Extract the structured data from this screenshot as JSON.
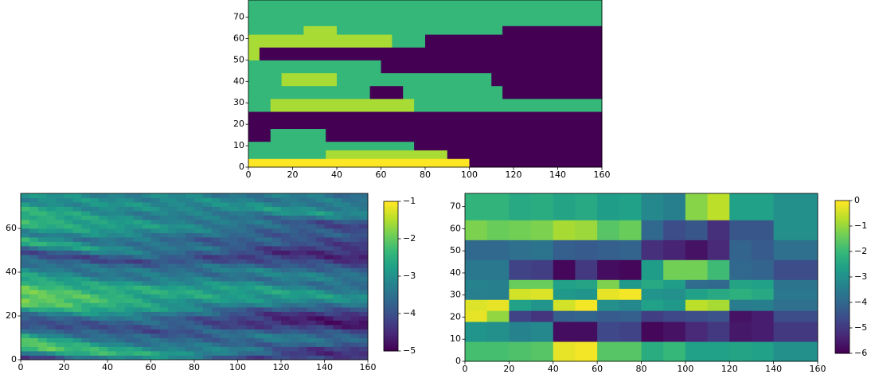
{
  "colors": {
    "viridis": [
      "#440154",
      "#482878",
      "#3e4a89",
      "#31688e",
      "#26828e",
      "#1f9e89",
      "#35b779",
      "#6ece58",
      "#b5de2b",
      "#fde725"
    ]
  },
  "chart_data": [
    {
      "id": "top",
      "type": "heatmap",
      "title": "",
      "xlabel": "",
      "ylabel": "",
      "xlim": [
        0,
        160
      ],
      "ylim": [
        0,
        78
      ],
      "xticks": [
        "0",
        "20",
        "40",
        "60",
        "80",
        "100",
        "120",
        "140",
        "160"
      ],
      "yticks": [
        "0",
        "10",
        "20",
        "30",
        "40",
        "50",
        "60",
        "70"
      ],
      "colorbar": false,
      "description_of_values": "categorical facies layers with 5 levels (0-4)",
      "value_range": [
        0,
        4
      ],
      "layers": [
        {
          "y": [
            0,
            4
          ],
          "segments": [
            [
              0,
              100,
              4
            ],
            [
              100,
              160,
              0
            ]
          ]
        },
        {
          "y": [
            4,
            8
          ],
          "segments": [
            [
              0,
              35,
              2
            ],
            [
              35,
              90,
              3
            ],
            [
              90,
              160,
              0
            ]
          ]
        },
        {
          "y": [
            8,
            12
          ],
          "segments": [
            [
              0,
              30,
              2
            ],
            [
              30,
              75,
              2
            ],
            [
              75,
              160,
              0
            ]
          ]
        },
        {
          "y": [
            12,
            18
          ],
          "segments": [
            [
              0,
              10,
              0
            ],
            [
              10,
              35,
              2
            ],
            [
              35,
              160,
              0
            ]
          ]
        },
        {
          "y": [
            18,
            26
          ],
          "segments": [
            [
              0,
              160,
              0
            ]
          ]
        },
        {
          "y": [
            26,
            32
          ],
          "segments": [
            [
              0,
              10,
              2
            ],
            [
              10,
              55,
              3
            ],
            [
              55,
              75,
              3
            ],
            [
              75,
              90,
              2
            ],
            [
              90,
              160,
              2
            ]
          ]
        },
        {
          "y": [
            32,
            38
          ],
          "segments": [
            [
              0,
              20,
              2
            ],
            [
              20,
              55,
              2
            ],
            [
              55,
              70,
              0
            ],
            [
              70,
              115,
              2
            ],
            [
              115,
              160,
              0
            ]
          ]
        },
        {
          "y": [
            38,
            44
          ],
          "segments": [
            [
              0,
              15,
              2
            ],
            [
              15,
              40,
              3
            ],
            [
              40,
              110,
              2
            ],
            [
              110,
              160,
              0
            ]
          ]
        },
        {
          "y": [
            44,
            50
          ],
          "segments": [
            [
              0,
              35,
              2
            ],
            [
              35,
              60,
              2
            ],
            [
              60,
              160,
              0
            ]
          ]
        },
        {
          "y": [
            50,
            56
          ],
          "segments": [
            [
              0,
              5,
              3
            ],
            [
              5,
              160,
              0
            ]
          ]
        },
        {
          "y": [
            56,
            62
          ],
          "segments": [
            [
              0,
              25,
              3
            ],
            [
              25,
              65,
              3
            ],
            [
              65,
              80,
              2
            ],
            [
              80,
              160,
              0
            ]
          ]
        },
        {
          "y": [
            62,
            66
          ],
          "segments": [
            [
              0,
              25,
              2
            ],
            [
              25,
              40,
              3
            ],
            [
              40,
              115,
              2
            ],
            [
              115,
              160,
              0
            ]
          ]
        },
        {
          "y": [
            66,
            78
          ],
          "segments": [
            [
              0,
              160,
              2
            ]
          ]
        }
      ]
    },
    {
      "id": "bottom-left",
      "type": "heatmap",
      "title": "",
      "xlabel": "",
      "ylabel": "",
      "xlim": [
        0,
        160
      ],
      "ylim": [
        0,
        76
      ],
      "xticks": [
        "0",
        "20",
        "40",
        "60",
        "80",
        "100",
        "120",
        "140",
        "160"
      ],
      "yticks": [
        "0",
        "20",
        "40",
        "60"
      ],
      "colorbar": true,
      "colorbar_range": [
        -5,
        -1
      ],
      "colorbar_ticks": [
        "−1",
        "−2",
        "−3",
        "−4",
        "−5"
      ],
      "grid_shape": [
        38,
        40
      ],
      "band_centers_y": [
        2,
        6,
        11,
        17,
        22,
        27,
        31,
        36,
        40,
        45,
        49,
        54,
        58,
        64,
        68,
        73
      ],
      "band_values_left": [
        -4.5,
        -1.6,
        -2.7,
        -4.3,
        -3.2,
        -1.7,
        -2.0,
        -2.3,
        -3.0,
        -3.5,
        -4.2,
        -2.4,
        -3.2,
        -2.2,
        -2.5,
        -3.0
      ],
      "band_values_right": [
        -4.2,
        -4.5,
        -3.5,
        -4.8,
        -4.6,
        -3.3,
        -3.0,
        -3.8,
        -3.3,
        -4.3,
        -4.6,
        -4.3,
        -4.0,
        -4.2,
        -3.0,
        -3.5
      ]
    },
    {
      "id": "bottom-right",
      "type": "heatmap",
      "title": "",
      "xlabel": "",
      "ylabel": "",
      "xlim": [
        0,
        160
      ],
      "ylim": [
        0,
        76
      ],
      "xticks": [
        "0",
        "20",
        "40",
        "60",
        "80",
        "100",
        "120",
        "140",
        "160"
      ],
      "yticks": [
        "0",
        "10",
        "20",
        "30",
        "40",
        "50",
        "60",
        "70"
      ],
      "colorbar": true,
      "colorbar_range": [
        -6,
        0
      ],
      "colorbar_ticks": [
        "0",
        "−1",
        "−2",
        "−3",
        "−4",
        "−5",
        "−6"
      ],
      "col_edges": [
        0,
        10,
        20,
        30,
        40,
        50,
        60,
        70,
        80,
        90,
        100,
        110,
        120,
        130,
        140,
        160
      ],
      "row_edges": [
        0,
        9,
        18,
        23,
        28,
        33,
        37,
        46,
        55,
        64,
        72,
        76
      ],
      "values": [
        [
          -1.8,
          -1.8,
          -1.7,
          -1.6,
          -0.2,
          -0.1,
          -1.6,
          -1.6,
          -2.3,
          -2.0,
          -2.6,
          -2.6,
          -2.5,
          -2.6,
          -3.0
        ],
        [
          -2.9,
          -3.0,
          -3.3,
          -3.2,
          -5.8,
          -5.8,
          -4.7,
          -4.8,
          -5.9,
          -5.7,
          -5.3,
          -5.0,
          -5.6,
          -5.5,
          -5.0
        ],
        [
          -0.2,
          -1.0,
          -4.8,
          -5.1,
          -4.2,
          -4.1,
          -4.3,
          -4.2,
          -4.9,
          -4.7,
          -4.6,
          -4.5,
          -5.7,
          -5.5,
          -4.6
        ],
        [
          -0.3,
          -0.2,
          -2.6,
          -2.9,
          -0.4,
          -0.1,
          -3.0,
          -3.2,
          -2.6,
          -2.8,
          -0.6,
          -0.8,
          -3.5,
          -3.4,
          -3.8
        ],
        [
          -3.4,
          -3.4,
          -0.4,
          -0.3,
          -2.8,
          -2.9,
          -0.2,
          -0.1,
          -2.9,
          -3.0,
          -2.6,
          -2.4,
          -2.2,
          -2.4,
          -3.6
        ],
        [
          -3.3,
          -3.4,
          -1.4,
          -1.4,
          -2.6,
          -2.5,
          -1.2,
          -2.8,
          -2.4,
          -2.7,
          -3.9,
          -4.0,
          -2.5,
          -2.6,
          -3.7
        ],
        [
          -3.6,
          -3.6,
          -4.8,
          -4.9,
          -5.9,
          -5.0,
          -5.8,
          -5.9,
          -2.7,
          -1.3,
          -1.3,
          -1.9,
          -4.0,
          -4.1,
          -4.6
        ],
        [
          -4.0,
          -4.0,
          -3.8,
          -3.7,
          -4.2,
          -4.3,
          -4.2,
          -4.1,
          -5.2,
          -5.4,
          -5.7,
          -5.3,
          -4.1,
          -4.3,
          -3.8
        ],
        [
          -1.2,
          -1.4,
          -1.3,
          -1.2,
          -0.8,
          -0.9,
          -1.6,
          -1.4,
          -4.0,
          -4.6,
          -4.4,
          -5.2,
          -4.4,
          -4.4,
          -3.0
        ],
        [
          -2.1,
          -2.1,
          -2.4,
          -2.3,
          -2.5,
          -2.4,
          -2.7,
          -2.6,
          -3.2,
          -3.4,
          -1.1,
          -0.6,
          -2.6,
          -2.6,
          -3.0
        ],
        [
          -2.1,
          -2.1,
          -2.4,
          -2.3,
          -2.5,
          -2.4,
          -2.7,
          -2.6,
          -3.2,
          -3.4,
          -1.1,
          -0.6,
          -2.6,
          -2.6,
          -3.0
        ]
      ]
    }
  ]
}
